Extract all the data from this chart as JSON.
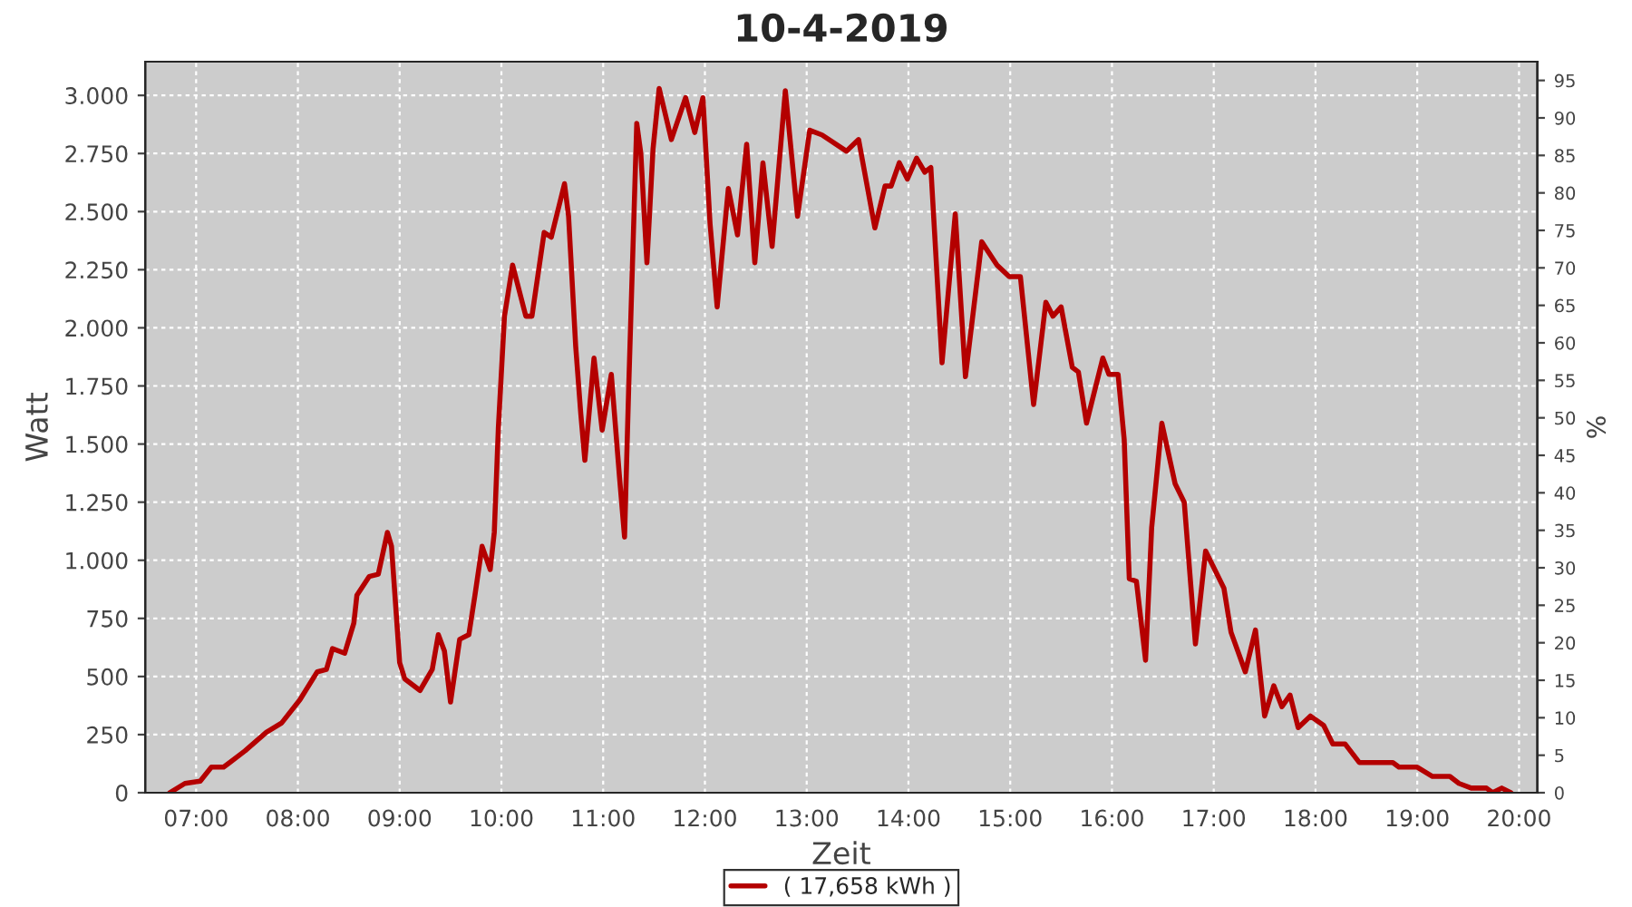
{
  "chart_data": {
    "type": "line",
    "title": "10-4-2019",
    "xlabel": "Zeit",
    "ylabel": "Watt",
    "y2label": "%",
    "x": [
      6.74,
      6.89,
      7.04,
      7.15,
      7.27,
      7.48,
      7.69,
      7.84,
      8.02,
      8.19,
      8.28,
      8.34,
      8.46,
      8.55,
      8.58,
      8.7,
      8.79,
      8.88,
      8.92,
      9.0,
      9.05,
      9.2,
      9.32,
      9.38,
      9.44,
      9.5,
      9.59,
      9.68,
      9.74,
      9.81,
      9.89,
      9.93,
      9.97,
      10.03,
      10.11,
      10.24,
      10.3,
      10.42,
      10.49,
      10.62,
      10.66,
      10.73,
      10.78,
      10.82,
      10.91,
      10.99,
      11.08,
      11.16,
      11.21,
      11.25,
      11.33,
      11.37,
      11.43,
      11.49,
      11.55,
      11.67,
      11.81,
      11.9,
      11.98,
      12.05,
      12.12,
      12.23,
      12.32,
      12.41,
      12.49,
      12.57,
      12.66,
      12.79,
      12.91,
      13.03,
      13.15,
      13.39,
      13.51,
      13.67,
      13.77,
      13.83,
      13.91,
      13.99,
      14.08,
      14.16,
      14.22,
      14.33,
      14.46,
      14.56,
      14.72,
      14.87,
      14.99,
      15.1,
      15.23,
      15.35,
      15.42,
      15.5,
      15.61,
      15.67,
      15.75,
      15.91,
      15.97,
      16.06,
      16.12,
      16.17,
      16.24,
      16.33,
      16.39,
      16.49,
      16.62,
      16.71,
      16.82,
      16.92,
      17.1,
      17.17,
      17.31,
      17.41,
      17.5,
      17.59,
      17.67,
      17.75,
      17.83,
      17.95,
      18.08,
      18.17,
      18.29,
      18.43,
      18.76,
      18.82,
      19.0,
      19.15,
      19.32,
      19.41,
      19.53,
      19.68,
      19.74,
      19.83,
      19.92
    ],
    "series": [
      {
        "name": "( 17,658 kWh )",
        "color": "#b40000",
        "values": [
          0,
          40,
          50,
          110,
          110,
          180,
          260,
          300,
          400,
          520,
          530,
          620,
          600,
          730,
          850,
          930,
          940,
          1120,
          1060,
          560,
          490,
          440,
          530,
          680,
          610,
          390,
          660,
          680,
          850,
          1060,
          960,
          1120,
          1570,
          2050,
          2270,
          2050,
          2050,
          2410,
          2390,
          2620,
          2480,
          1920,
          1630,
          1430,
          1870,
          1560,
          1800,
          1360,
          1100,
          1730,
          2880,
          2750,
          2280,
          2770,
          3030,
          2810,
          2990,
          2840,
          2990,
          2450,
          2090,
          2600,
          2400,
          2790,
          2280,
          2710,
          2350,
          3020,
          2480,
          2850,
          2830,
          2760,
          2810,
          2430,
          2610,
          2610,
          2710,
          2640,
          2730,
          2670,
          2690,
          1850,
          2490,
          1790,
          2370,
          2270,
          2220,
          2220,
          1670,
          2110,
          2050,
          2090,
          1830,
          1810,
          1590,
          1870,
          1800,
          1800,
          1520,
          920,
          910,
          570,
          1140,
          1590,
          1330,
          1250,
          640,
          1040,
          880,
          690,
          520,
          700,
          330,
          460,
          370,
          420,
          280,
          330,
          290,
          210,
          210,
          130,
          130,
          110,
          110,
          70,
          70,
          40,
          20,
          20,
          0,
          20,
          0
        ]
      }
    ],
    "xlim": [
      6.5,
      20.18
    ],
    "xticks": [
      {
        "value": 7,
        "label": "07:00"
      },
      {
        "value": 8,
        "label": "08:00"
      },
      {
        "value": 9,
        "label": "09:00"
      },
      {
        "value": 10,
        "label": "10:00"
      },
      {
        "value": 11,
        "label": "11:00"
      },
      {
        "value": 12,
        "label": "12:00"
      },
      {
        "value": 13,
        "label": "13:00"
      },
      {
        "value": 14,
        "label": "14:00"
      },
      {
        "value": 15,
        "label": "15:00"
      },
      {
        "value": 16,
        "label": "16:00"
      },
      {
        "value": 17,
        "label": "17:00"
      },
      {
        "value": 18,
        "label": "18:00"
      },
      {
        "value": 19,
        "label": "19:00"
      },
      {
        "value": 20,
        "label": "20:00"
      }
    ],
    "ylim": [
      0,
      3145
    ],
    "yticks": [
      0,
      250,
      500,
      750,
      {
        "value": 1000,
        "label": "1.000"
      },
      {
        "value": 1250,
        "label": "1.250"
      },
      {
        "value": 1500,
        "label": "1.500"
      },
      {
        "value": 1750,
        "label": "1.750"
      },
      {
        "value": 2000,
        "label": "2.000"
      },
      {
        "value": 2250,
        "label": "2.250"
      },
      {
        "value": 2500,
        "label": "2.500"
      },
      {
        "value": 2750,
        "label": "2.750"
      },
      {
        "value": 3000,
        "label": "3.000"
      }
    ],
    "y2lim": [
      0,
      97.5
    ],
    "y2ticks": [
      0,
      5,
      10,
      15,
      20,
      25,
      30,
      35,
      40,
      45,
      50,
      55,
      60,
      65,
      70,
      75,
      80,
      85,
      90,
      95
    ],
    "grid": true,
    "legend": "bottom",
    "marker": "none",
    "line_style": "solid"
  }
}
